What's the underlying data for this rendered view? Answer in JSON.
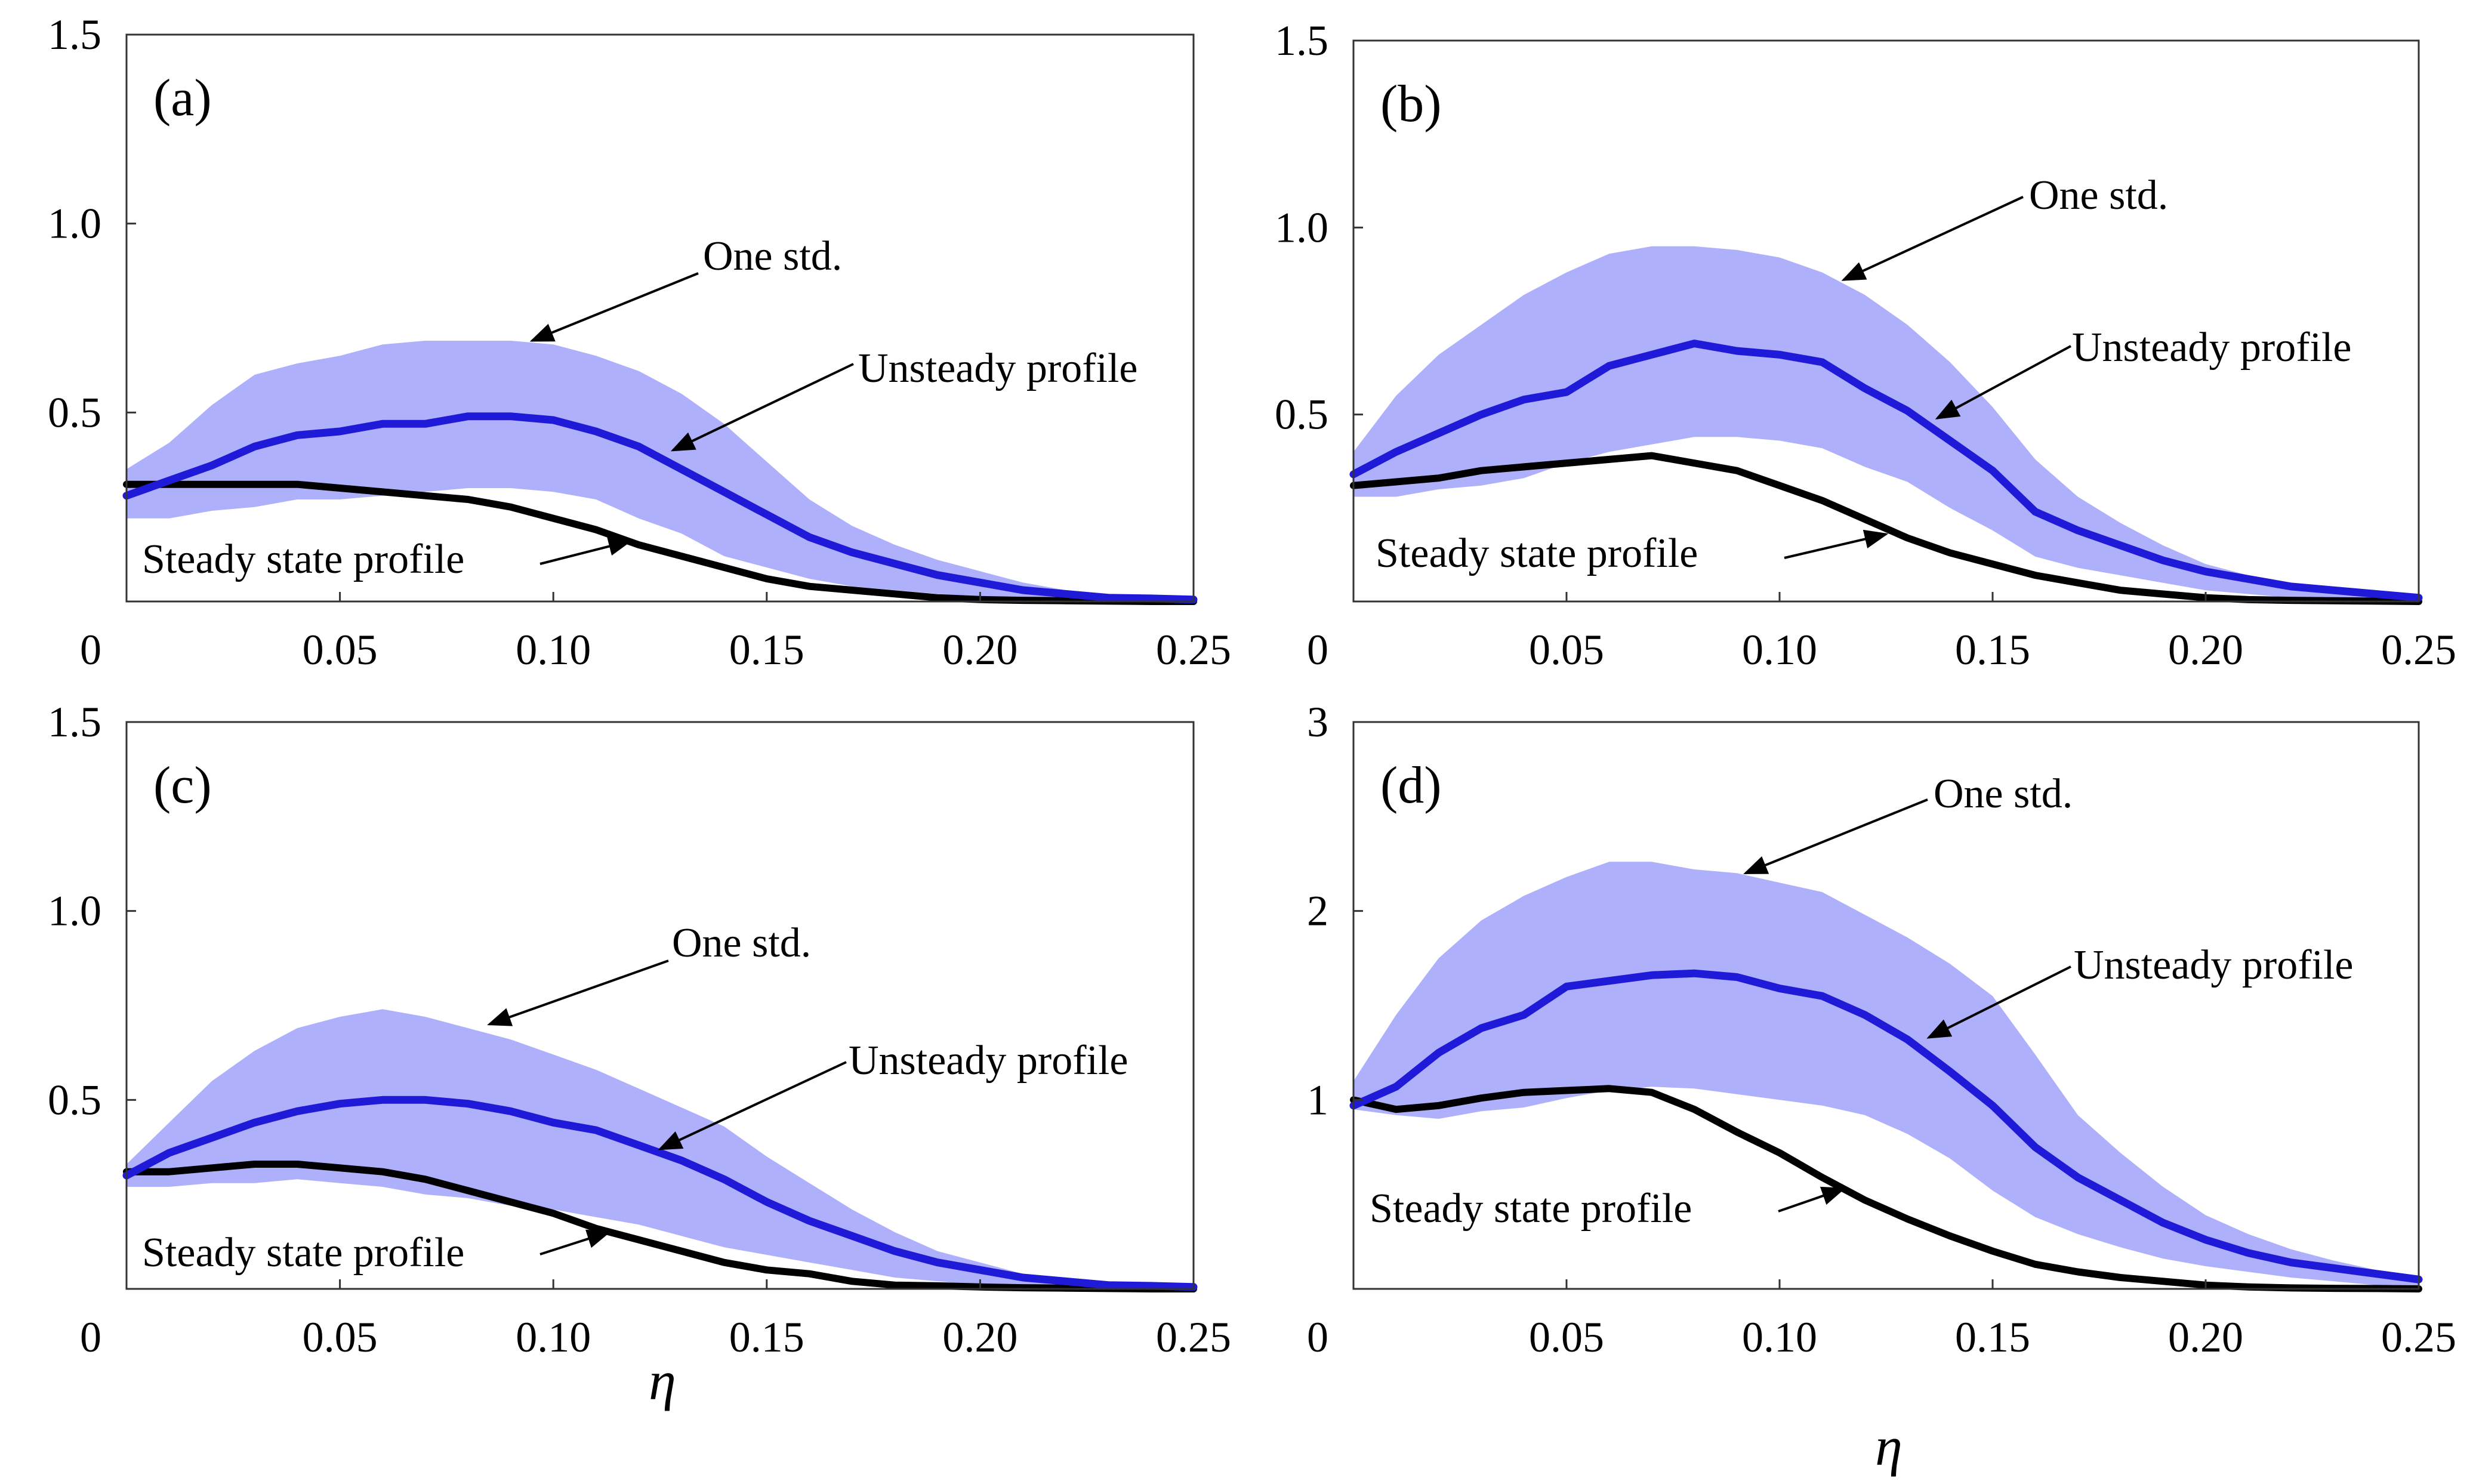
{
  "figure": {
    "xlabel": "η",
    "colors": {
      "band": "#aeb0fb",
      "unsteady": "#1f1ad8",
      "steady": "#000000",
      "axis": "#333333"
    }
  },
  "chart_data": [
    {
      "type": "area",
      "panel": "(a)",
      "xlim": [
        0,
        0.25
      ],
      "ylim": [
        0,
        1.5
      ],
      "xticks": [
        0,
        0.05,
        0.1,
        0.15,
        0.2,
        0.25
      ],
      "xtick_labels": [
        "0",
        "0.05",
        "0.10",
        "0.15",
        "0.20",
        "0.25"
      ],
      "yticks": [
        0.5,
        1.0,
        1.5
      ],
      "ytick_labels": [
        "0.5",
        "1.0",
        "1.5"
      ],
      "x": [
        0,
        0.01,
        0.02,
        0.03,
        0.04,
        0.05,
        0.06,
        0.07,
        0.08,
        0.09,
        0.1,
        0.11,
        0.12,
        0.13,
        0.14,
        0.15,
        0.16,
        0.17,
        0.18,
        0.19,
        0.2,
        0.21,
        0.22,
        0.23,
        0.24,
        0.25
      ],
      "series": [
        {
          "name": "Unsteady profile",
          "values": [
            0.28,
            0.32,
            0.36,
            0.41,
            0.44,
            0.45,
            0.47,
            0.47,
            0.49,
            0.49,
            0.48,
            0.45,
            0.41,
            0.35,
            0.29,
            0.23,
            0.17,
            0.13,
            0.1,
            0.07,
            0.05,
            0.03,
            0.02,
            0.01,
            0.008,
            0.005
          ]
        },
        {
          "name": "Steady state profile",
          "values": [
            0.31,
            0.31,
            0.31,
            0.31,
            0.31,
            0.3,
            0.29,
            0.28,
            0.27,
            0.25,
            0.22,
            0.19,
            0.15,
            0.12,
            0.09,
            0.06,
            0.04,
            0.03,
            0.02,
            0.01,
            0.005,
            0.003,
            0.002,
            0.001,
            0.0,
            0.0
          ]
        },
        {
          "name": "One std. upper",
          "values": [
            0.35,
            0.42,
            0.52,
            0.6,
            0.63,
            0.65,
            0.68,
            0.69,
            0.69,
            0.69,
            0.68,
            0.65,
            0.61,
            0.55,
            0.47,
            0.37,
            0.27,
            0.2,
            0.15,
            0.11,
            0.08,
            0.05,
            0.03,
            0.02,
            0.01,
            0.005
          ]
        },
        {
          "name": "One std. lower",
          "values": [
            0.22,
            0.22,
            0.24,
            0.25,
            0.27,
            0.27,
            0.28,
            0.29,
            0.3,
            0.3,
            0.29,
            0.27,
            0.22,
            0.18,
            0.12,
            0.09,
            0.06,
            0.04,
            0.03,
            0.02,
            0.01,
            0.005,
            0.003,
            0.002,
            0.001,
            0.0
          ]
        }
      ],
      "annotations": [
        {
          "text": "One std.",
          "target": [
            0.095,
            0.69
          ]
        },
        {
          "text": "Unsteady profile",
          "target": [
            0.128,
            0.4
          ]
        },
        {
          "text": "Steady state profile",
          "target": [
            0.118,
            0.16
          ]
        }
      ]
    },
    {
      "type": "area",
      "panel": "(b)",
      "xlim": [
        0,
        0.25
      ],
      "ylim": [
        0,
        1.5
      ],
      "xticks": [
        0,
        0.05,
        0.1,
        0.15,
        0.2,
        0.25
      ],
      "xtick_labels": [
        "0",
        "0.05",
        "0.10",
        "0.15",
        "0.20",
        "0.25"
      ],
      "yticks": [
        0.5,
        1.0,
        1.5
      ],
      "ytick_labels": [
        "0.5",
        "1.0",
        "1.5"
      ],
      "x": [
        0,
        0.01,
        0.02,
        0.03,
        0.04,
        0.05,
        0.06,
        0.07,
        0.08,
        0.09,
        0.1,
        0.11,
        0.12,
        0.13,
        0.14,
        0.15,
        0.16,
        0.17,
        0.18,
        0.19,
        0.2,
        0.21,
        0.22,
        0.23,
        0.24,
        0.25
      ],
      "series": [
        {
          "name": "Unsteady profile",
          "values": [
            0.34,
            0.4,
            0.45,
            0.5,
            0.54,
            0.56,
            0.63,
            0.66,
            0.69,
            0.67,
            0.66,
            0.64,
            0.57,
            0.51,
            0.43,
            0.35,
            0.24,
            0.19,
            0.15,
            0.11,
            0.08,
            0.06,
            0.04,
            0.03,
            0.02,
            0.01
          ]
        },
        {
          "name": "Steady state profile",
          "values": [
            0.31,
            0.32,
            0.33,
            0.35,
            0.36,
            0.37,
            0.38,
            0.39,
            0.37,
            0.35,
            0.31,
            0.27,
            0.22,
            0.17,
            0.13,
            0.1,
            0.07,
            0.05,
            0.03,
            0.02,
            0.01,
            0.005,
            0.003,
            0.002,
            0.001,
            0.0
          ]
        },
        {
          "name": "One std. upper",
          "values": [
            0.4,
            0.55,
            0.66,
            0.74,
            0.82,
            0.88,
            0.93,
            0.95,
            0.95,
            0.94,
            0.92,
            0.88,
            0.82,
            0.74,
            0.64,
            0.52,
            0.38,
            0.28,
            0.21,
            0.15,
            0.1,
            0.07,
            0.05,
            0.03,
            0.02,
            0.01
          ]
        },
        {
          "name": "One std. lower",
          "values": [
            0.28,
            0.28,
            0.3,
            0.31,
            0.33,
            0.37,
            0.4,
            0.42,
            0.44,
            0.44,
            0.43,
            0.41,
            0.36,
            0.32,
            0.25,
            0.19,
            0.12,
            0.09,
            0.07,
            0.05,
            0.03,
            0.02,
            0.01,
            0.005,
            0.003,
            0.0
          ]
        }
      ],
      "annotations": [
        {
          "text": "One std.",
          "target": [
            0.115,
            0.86
          ]
        },
        {
          "text": "Unsteady profile",
          "target": [
            0.137,
            0.49
          ]
        },
        {
          "text": "Steady state profile",
          "target": [
            0.125,
            0.18
          ]
        }
      ]
    },
    {
      "type": "area",
      "panel": "(c)",
      "xlim": [
        0,
        0.25
      ],
      "ylim": [
        0,
        1.5
      ],
      "xticks": [
        0,
        0.05,
        0.1,
        0.15,
        0.2,
        0.25
      ],
      "xtick_labels": [
        "0",
        "0.05",
        "0.10",
        "0.15",
        "0.20",
        "0.25"
      ],
      "yticks": [
        0.5,
        1.0,
        1.5
      ],
      "ytick_labels": [
        "0.5",
        "1.0",
        "1.5"
      ],
      "x": [
        0,
        0.01,
        0.02,
        0.03,
        0.04,
        0.05,
        0.06,
        0.07,
        0.08,
        0.09,
        0.1,
        0.11,
        0.12,
        0.13,
        0.14,
        0.15,
        0.16,
        0.17,
        0.18,
        0.19,
        0.2,
        0.21,
        0.22,
        0.23,
        0.24,
        0.25
      ],
      "series": [
        {
          "name": "Unsteady profile",
          "values": [
            0.3,
            0.36,
            0.4,
            0.44,
            0.47,
            0.49,
            0.5,
            0.5,
            0.49,
            0.47,
            0.44,
            0.42,
            0.38,
            0.34,
            0.29,
            0.23,
            0.18,
            0.14,
            0.1,
            0.07,
            0.05,
            0.03,
            0.02,
            0.01,
            0.008,
            0.005
          ]
        },
        {
          "name": "Steady state profile",
          "values": [
            0.31,
            0.31,
            0.32,
            0.33,
            0.33,
            0.32,
            0.31,
            0.29,
            0.26,
            0.23,
            0.2,
            0.16,
            0.13,
            0.1,
            0.07,
            0.05,
            0.04,
            0.02,
            0.01,
            0.008,
            0.005,
            0.003,
            0.002,
            0.001,
            0.0,
            0.0
          ]
        },
        {
          "name": "One std. upper",
          "values": [
            0.33,
            0.44,
            0.55,
            0.63,
            0.69,
            0.72,
            0.74,
            0.72,
            0.69,
            0.66,
            0.62,
            0.58,
            0.53,
            0.48,
            0.43,
            0.35,
            0.28,
            0.21,
            0.15,
            0.1,
            0.07,
            0.04,
            0.03,
            0.02,
            0.01,
            0.005
          ]
        },
        {
          "name": "One std. lower",
          "values": [
            0.27,
            0.27,
            0.28,
            0.28,
            0.29,
            0.28,
            0.27,
            0.25,
            0.24,
            0.22,
            0.21,
            0.19,
            0.17,
            0.14,
            0.11,
            0.09,
            0.07,
            0.05,
            0.03,
            0.02,
            0.01,
            0.005,
            0.003,
            0.002,
            0.001,
            0.0
          ]
        }
      ],
      "annotations": [
        {
          "text": "One std.",
          "target": [
            0.085,
            0.7
          ]
        },
        {
          "text": "Unsteady profile",
          "target": [
            0.125,
            0.37
          ]
        },
        {
          "text": "Steady state profile",
          "target": [
            0.113,
            0.15
          ]
        }
      ]
    },
    {
      "type": "area",
      "panel": "(d)",
      "xlim": [
        0,
        0.25
      ],
      "ylim": [
        0,
        3
      ],
      "xticks": [
        0,
        0.05,
        0.1,
        0.15,
        0.2,
        0.25
      ],
      "xtick_labels": [
        "0",
        "0.05",
        "0.10",
        "0.15",
        "0.20",
        "0.25"
      ],
      "yticks": [
        1,
        2,
        3
      ],
      "ytick_labels": [
        "1",
        "2",
        "3"
      ],
      "x": [
        0,
        0.01,
        0.02,
        0.03,
        0.04,
        0.05,
        0.06,
        0.07,
        0.08,
        0.09,
        0.1,
        0.11,
        0.12,
        0.13,
        0.14,
        0.15,
        0.16,
        0.17,
        0.18,
        0.19,
        0.2,
        0.21,
        0.22,
        0.23,
        0.24,
        0.25
      ],
      "series": [
        {
          "name": "Unsteady profile",
          "values": [
            0.97,
            1.07,
            1.25,
            1.38,
            1.45,
            1.6,
            1.63,
            1.66,
            1.67,
            1.65,
            1.59,
            1.55,
            1.45,
            1.32,
            1.15,
            0.97,
            0.75,
            0.59,
            0.47,
            0.35,
            0.26,
            0.19,
            0.14,
            0.11,
            0.08,
            0.05
          ]
        },
        {
          "name": "Steady state profile",
          "values": [
            1.0,
            0.95,
            0.97,
            1.01,
            1.04,
            1.05,
            1.06,
            1.04,
            0.95,
            0.83,
            0.72,
            0.59,
            0.47,
            0.37,
            0.28,
            0.2,
            0.13,
            0.09,
            0.06,
            0.04,
            0.02,
            0.01,
            0.005,
            0.003,
            0.002,
            0.0
          ]
        },
        {
          "name": "One std. upper",
          "values": [
            1.1,
            1.45,
            1.75,
            1.95,
            2.08,
            2.18,
            2.26,
            2.26,
            2.22,
            2.2,
            2.15,
            2.1,
            1.98,
            1.86,
            1.72,
            1.55,
            1.24,
            0.92,
            0.72,
            0.54,
            0.39,
            0.29,
            0.21,
            0.15,
            0.1,
            0.07
          ]
        },
        {
          "name": "One std. lower",
          "values": [
            0.95,
            0.92,
            0.9,
            0.94,
            0.96,
            1.01,
            1.05,
            1.07,
            1.06,
            1.03,
            1.0,
            0.97,
            0.92,
            0.82,
            0.69,
            0.52,
            0.38,
            0.29,
            0.22,
            0.16,
            0.12,
            0.09,
            0.06,
            0.04,
            0.02,
            0.01
          ]
        }
      ],
      "annotations": [
        {
          "text": "One std.",
          "target": [
            0.092,
            2.2
          ]
        },
        {
          "text": "Unsteady profile",
          "target": [
            0.135,
            1.33
          ]
        },
        {
          "text": "Steady state profile",
          "target": [
            0.115,
            0.53
          ]
        }
      ]
    }
  ]
}
